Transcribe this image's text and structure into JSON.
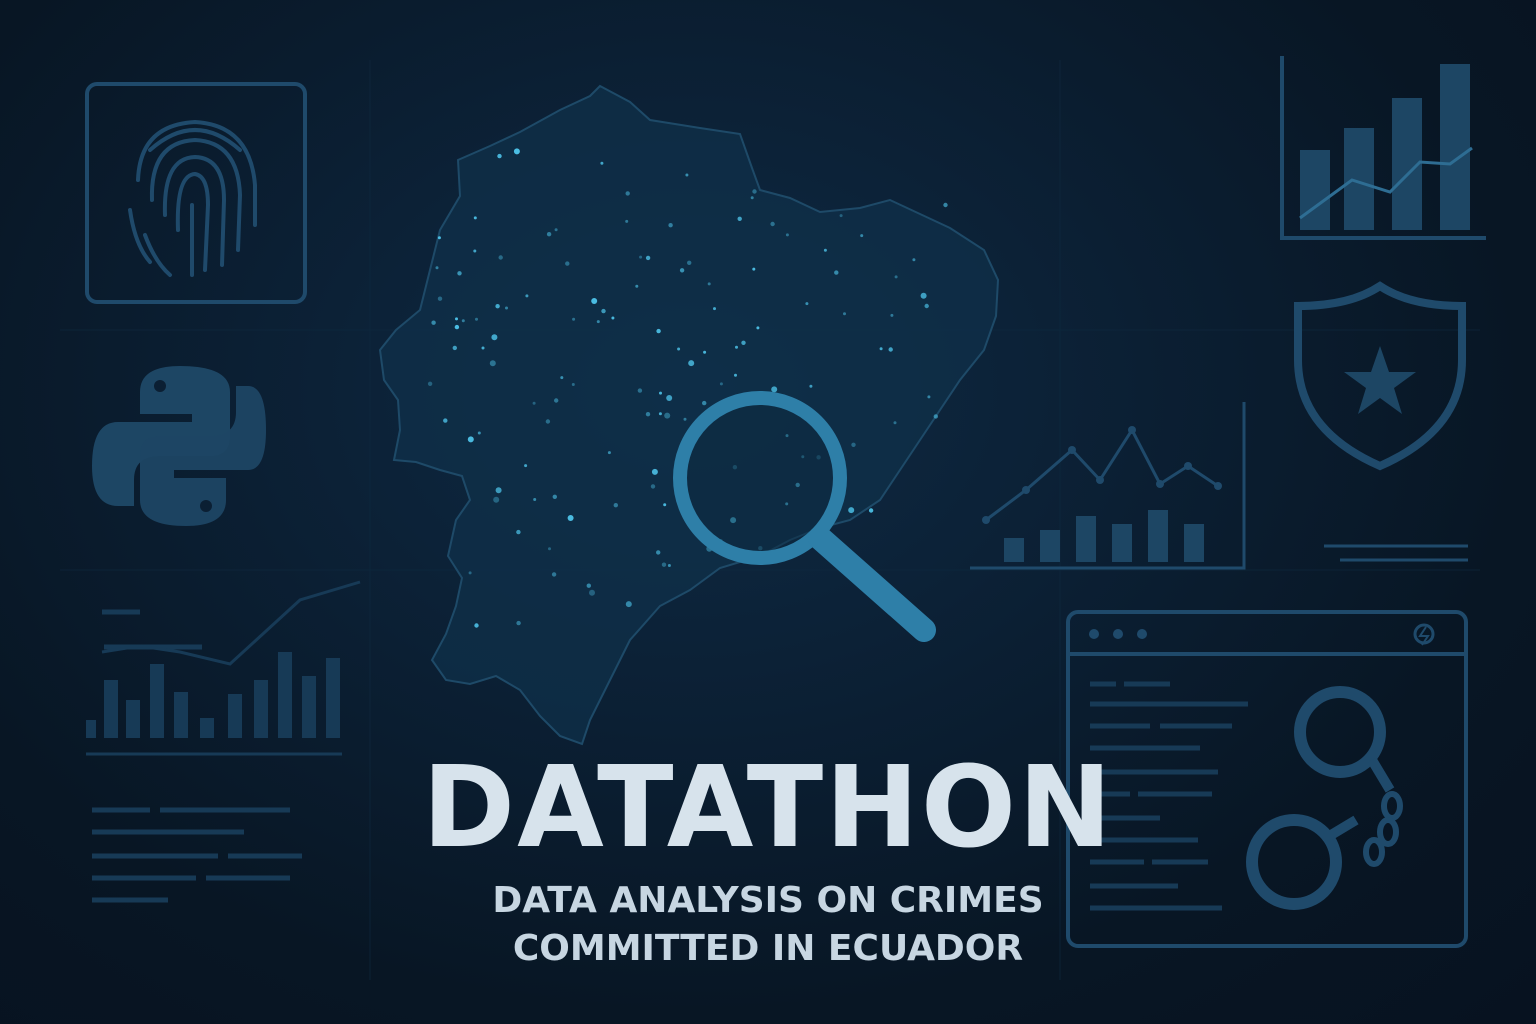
{
  "heading": {
    "title": "DATATHON",
    "subtitle_line1": "DATA ANALYSIS ON CRIMES",
    "subtitle_line2": "COMMITTED IN ECUADOR"
  },
  "icons": [
    "fingerprint-icon",
    "python-logo-icon",
    "bar-chart-icon",
    "shield-star-icon",
    "line-bar-chart-icon",
    "browser-window-icon",
    "handcuffs-icon",
    "magnifying-glass-icon",
    "ecuador-map"
  ],
  "colors": {
    "background": "#0b1f33",
    "icon_stroke": "#1f4a6b",
    "icon_fill": "#1d4664",
    "map_fill": "#0f3049",
    "dot": "#4fc6ec",
    "magnifier": "#2e7fa8",
    "title": "#d7e3ec"
  }
}
